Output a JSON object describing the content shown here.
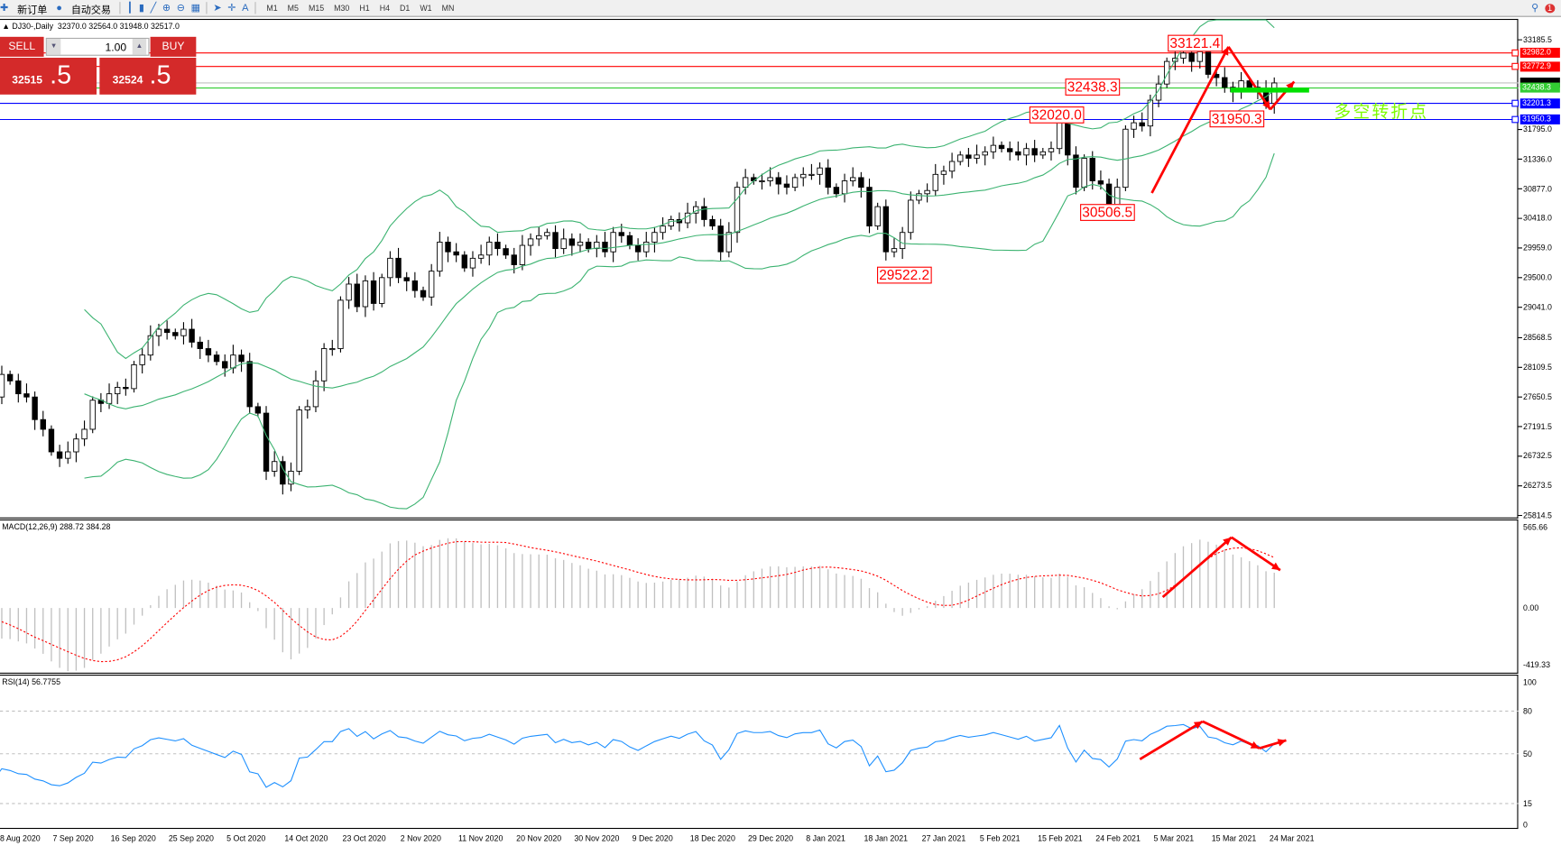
{
  "toolbar": {
    "new_order": "新订单",
    "auto_trading": "自动交易",
    "timeframes": [
      "M1",
      "M5",
      "M15",
      "M30",
      "H1",
      "H4",
      "D1",
      "W1",
      "MN"
    ],
    "notifications": "1"
  },
  "chart": {
    "symbol_title": "DJ30-,Daily",
    "ohlc": "32370.0 32564.0 31948.0 32517.0"
  },
  "trade_panel": {
    "sell": "SELL",
    "buy": "BUY",
    "lot": "1.00",
    "bid_main": "32515",
    "bid_frac": ".5",
    "ask_main": "32524",
    "ask_frac": ".5"
  },
  "price_axis": [
    "33185.5",
    "31795.0",
    "31336.0",
    "30877.0",
    "30418.0",
    "29959.0",
    "29500.0",
    "29041.0",
    "28568.5",
    "28109.5",
    "27650.5",
    "27191.5",
    "26732.5",
    "26273.5",
    "25814.5"
  ],
  "price_axis_values": [
    33185.5,
    31795.0,
    31336.0,
    30877.0,
    30418.0,
    29959.0,
    29500.0,
    29041.0,
    28568.5,
    28109.5,
    27650.5,
    27191.5,
    26732.5,
    26273.5,
    25814.5
  ],
  "level_lines": [
    {
      "label": "32982.0",
      "price": 32982.0,
      "color": "#ff0000"
    },
    {
      "label": "32772.9",
      "price": 32772.9,
      "color": "#ff0000"
    },
    {
      "label": "32438.3",
      "price": 32438.3,
      "color": "#32cd32"
    },
    {
      "label": "32201.3",
      "price": 32201.3,
      "color": "#0000ff"
    },
    {
      "label": "31950.3",
      "price": 31950.3,
      "color": "#0000ff"
    }
  ],
  "current_price": 32517.0,
  "annotations": [
    "33121.4",
    "32438.3",
    "32020.0",
    "30506.5",
    "29522.2",
    "31950.3"
  ],
  "pivot_text": "多空转折点",
  "macd": {
    "title": "MACD(12,26,9) 288.72 384.28",
    "axis": [
      "565.66",
      "0.00",
      "-419.33"
    ]
  },
  "rsi": {
    "title": "RSI(14) 56.7755",
    "axis": [
      "100",
      "80",
      "50",
      "15",
      "0"
    ]
  },
  "dates": [
    "8 Aug 2020",
    "7 Sep 2020",
    "16 Sep 2020",
    "25 Sep 2020",
    "5 Oct 2020",
    "14 Oct 2020",
    "23 Oct 2020",
    "2 Nov 2020",
    "11 Nov 2020",
    "20 Nov 2020",
    "30 Nov 2020",
    "9 Dec 2020",
    "18 Dec 2020",
    "29 Dec 2020",
    "8 Jan 2021",
    "18 Jan 2021",
    "27 Jan 2021",
    "5 Feb 2021",
    "15 Feb 2021",
    "24 Feb 2021",
    "5 Mar 2021",
    "15 Mar 2021",
    "24 Mar 2021"
  ],
  "colors": {
    "bollinger": "#3cb371",
    "macd_signal": "#ff0000",
    "macd_hist": "#c0c0c0",
    "rsi": "#1e90ff",
    "panel": "#d42a2a",
    "arrows": "#ff0000"
  },
  "chart_data": {
    "type": "candlestick",
    "indicators": [
      "Bollinger Bands",
      "MACD(12,26,9)",
      "RSI(14)"
    ],
    "ylim": [
      25814.5,
      33185.5
    ],
    "closes": [
      28650,
      28430,
      28900,
      28800,
      28300,
      27500,
      27900,
      27700,
      27650,
      28000,
      27900,
      27700,
      27650,
      27300,
      27150,
      26800,
      26700,
      26800,
      27000,
      27150,
      27600,
      27550,
      27700,
      27800,
      27780,
      28150,
      28300,
      28600,
      28700,
      28650,
      28600,
      28700,
      28500,
      28400,
      28300,
      28200,
      28100,
      28300,
      28200,
      27500,
      27400,
      26500,
      26650,
      26300,
      26500,
      27450,
      27500,
      27900,
      28400,
      28400,
      29150,
      29400,
      29050,
      29450,
      29100,
      29500,
      29800,
      29500,
      29450,
      29300,
      29200,
      29600,
      30050,
      29900,
      29850,
      29650,
      29800,
      29850,
      30050,
      29950,
      29850,
      29700,
      30000,
      30100,
      30150,
      30200,
      29950,
      30100,
      30000,
      30050,
      29950,
      30050,
      29900,
      30200,
      30150,
      30000,
      29900,
      30050,
      30200,
      30300,
      30400,
      30350,
      30500,
      30600,
      30400,
      30300,
      29900,
      30200,
      30900,
      31050,
      31000,
      31000,
      31050,
      30950,
      30900,
      31050,
      31100,
      31100,
      31200,
      30900,
      30800,
      31000,
      31050,
      30900,
      30300,
      30600,
      29900,
      29950,
      30200,
      30700,
      30800,
      30850,
      31100,
      31150,
      31300,
      31400,
      31350,
      31400,
      31450,
      31550,
      31500,
      31450,
      31400,
      31500,
      31400,
      31450,
      31500,
      31950,
      31400,
      30900,
      31350,
      31000,
      30950,
      30600,
      30900,
      31800,
      31900,
      31850,
      32250,
      32500,
      32850,
      32900,
      32980,
      32850,
      33000,
      32650,
      32600,
      32450,
      32380,
      32550,
      32450,
      32400,
      32200,
      32517
    ]
  }
}
